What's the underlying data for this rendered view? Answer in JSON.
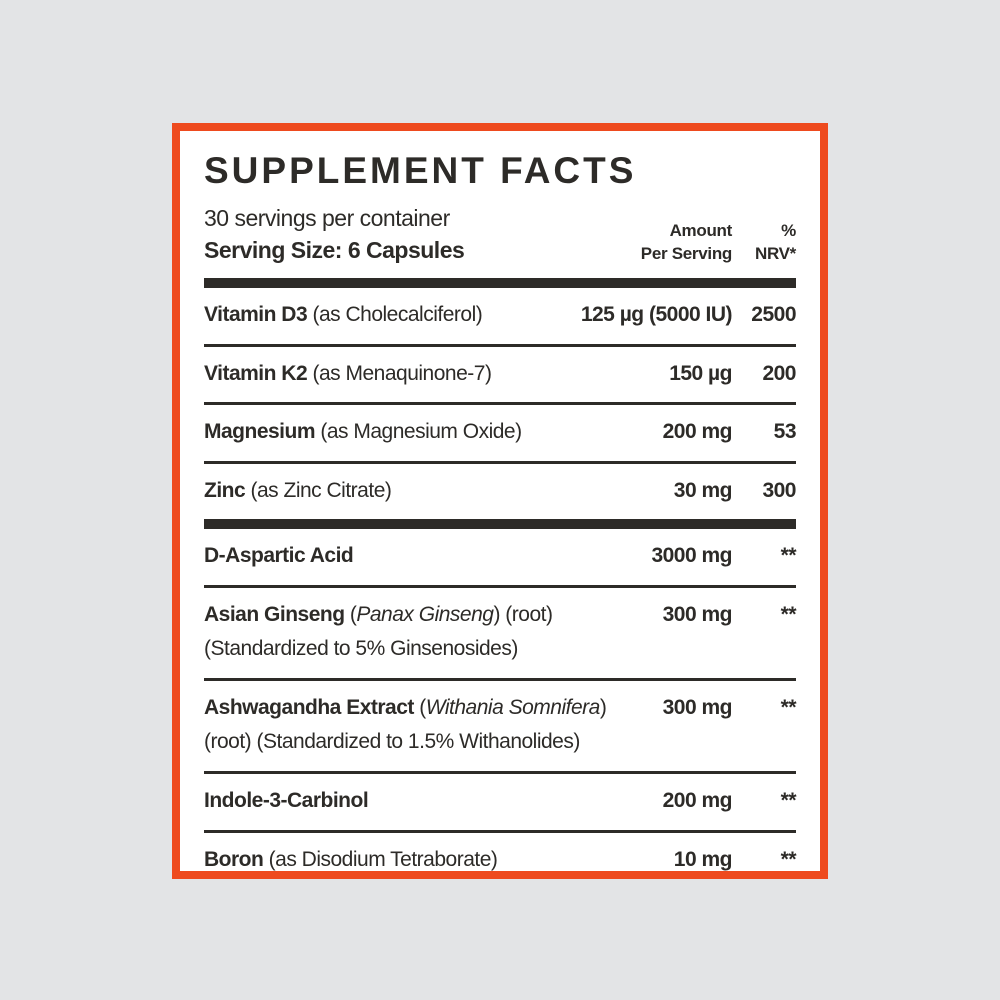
{
  "colors": {
    "border": "#EE4A1E",
    "background": "#E3E4E6",
    "text": "#2D2B28",
    "panel_background": "#FFFFFF"
  },
  "label": {
    "title": "SUPPLEMENT FACTS",
    "servings_per_container": "30 servings per container",
    "serving_size": "Serving Size: 6 Capsules",
    "columns": {
      "amount_line1": "Amount",
      "amount_line2": "Per Serving",
      "nrv_line1": "%",
      "nrv_line2": "NRV*"
    },
    "sections": [
      {
        "rows": [
          {
            "name": [
              {
                "t": "Vitamin D3",
                "s": "b"
              },
              {
                "t": " (as Cholecalciferol)",
                "s": "r"
              }
            ],
            "amount": "125 µg (5000 IU)",
            "nrv": "2500"
          },
          {
            "name": [
              {
                "t": "Vitamin K2",
                "s": "b"
              },
              {
                "t": " (as Menaquinone-7)",
                "s": "r"
              }
            ],
            "amount": "150 µg",
            "nrv": "200"
          },
          {
            "name": [
              {
                "t": "Magnesium",
                "s": "b"
              },
              {
                "t": " (as Magnesium Oxide)",
                "s": "r"
              }
            ],
            "amount": "200 mg",
            "nrv": "53"
          },
          {
            "name": [
              {
                "t": "Zinc",
                "s": "b"
              },
              {
                "t": " (as Zinc Citrate)",
                "s": "r"
              }
            ],
            "amount": "30 mg",
            "nrv": "300"
          }
        ]
      },
      {
        "rows": [
          {
            "name": [
              {
                "t": "D-Aspartic Acid",
                "s": "b"
              }
            ],
            "amount": "3000 mg",
            "nrv": "**"
          },
          {
            "name": [
              {
                "t": "Asian Ginseng",
                "s": "b"
              },
              {
                "t": " (",
                "s": "r"
              },
              {
                "t": "Panax Ginseng",
                "s": "i"
              },
              {
                "t": ") (root)",
                "s": "r"
              }
            ],
            "amount": "300 mg",
            "nrv": "**",
            "line2": "(Standardized to 5% Ginsenosides)"
          },
          {
            "name": [
              {
                "t": "Ashwagandha Extract",
                "s": "b"
              },
              {
                "t": " (",
                "s": "r"
              },
              {
                "t": "Withania Somnifera",
                "s": "i"
              },
              {
                "t": ")",
                "s": "r"
              }
            ],
            "amount": "300 mg",
            "nrv": "**",
            "line2": "(root) (Standardized to 1.5% Withanolides)"
          },
          {
            "name": [
              {
                "t": "Indole-3-Carbinol",
                "s": "b"
              }
            ],
            "amount": "200 mg",
            "nrv": "**"
          },
          {
            "name": [
              {
                "t": "Boron",
                "s": "b"
              },
              {
                "t": " (as Disodium Tetraborate)",
                "s": "r"
              }
            ],
            "amount": "10 mg",
            "nrv": "**"
          }
        ]
      }
    ]
  }
}
